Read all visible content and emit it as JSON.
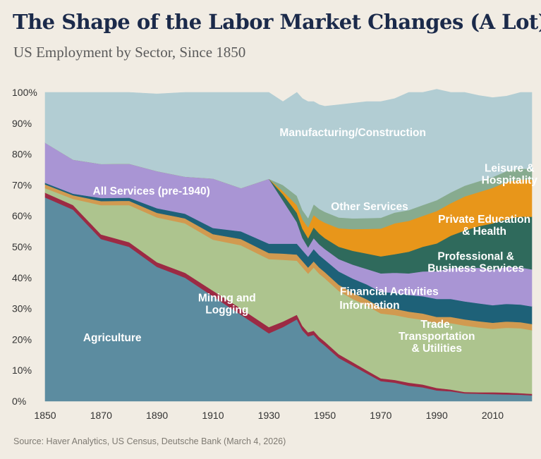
{
  "title": "The Shape of the Labor Market Changes (A Lot)",
  "subtitle": "US Employment by Sector, Since 1850",
  "source": "Source: Haver Analytics, US Census, Deutsche Bank (March 4, 2026)",
  "chart_data": {
    "type": "area",
    "stacked": true,
    "x": [
      1850,
      1860,
      1870,
      1880,
      1890,
      1900,
      1910,
      1920,
      1930,
      1935,
      1940,
      1942,
      1944,
      1946,
      1948,
      1950,
      1955,
      1960,
      1965,
      1970,
      1975,
      1980,
      1985,
      1990,
      1995,
      2000,
      2005,
      2010,
      2015,
      2020,
      2024
    ],
    "xticks": [
      1850,
      1870,
      1890,
      1910,
      1930,
      1950,
      1970,
      1990,
      2010
    ],
    "yticks": [
      0,
      10,
      20,
      30,
      40,
      50,
      60,
      70,
      80,
      90,
      100
    ],
    "ytick_format": "{v}%",
    "xlim": [
      1850,
      2024
    ],
    "ylim": [
      0,
      100
    ],
    "series": [
      {
        "name": "Agriculture",
        "color": "#5c8ca0",
        "values": [
          66,
          62,
          52.5,
          50,
          43.5,
          40,
          34,
          28,
          22,
          24,
          26.5,
          23,
          21,
          21.5,
          19.5,
          18,
          14,
          11.5,
          9,
          6.5,
          6,
          5,
          4.5,
          3.5,
          3.2,
          2.5,
          2.4,
          2.3,
          2.2,
          2.1,
          1.9
        ]
      },
      {
        "name": "Mining and Logging",
        "color": "#9c2a44",
        "values": [
          1.5,
          1.5,
          1.5,
          1.5,
          1.5,
          1.6,
          1.8,
          2,
          2,
          1.8,
          1.5,
          1.4,
          1.3,
          1.3,
          1.3,
          1.3,
          1.2,
          1.1,
          1,
          0.9,
          0.9,
          1,
          0.9,
          0.8,
          0.6,
          0.5,
          0.5,
          0.6,
          0.6,
          0.5,
          0.5
        ]
      },
      {
        "name": "Trade, Transportation & Utilities",
        "color": "#adc48e",
        "values": [
          1.5,
          2,
          9.5,
          12,
          14.5,
          16,
          16.5,
          20.5,
          22,
          20,
          17.5,
          19,
          19,
          20.5,
          20.5,
          20.5,
          20.5,
          20.5,
          21,
          21,
          21,
          21,
          21,
          21,
          21.5,
          21.5,
          21,
          20.5,
          21,
          21,
          20.6
        ]
      },
      {
        "name": "Information",
        "color": "#d19a50",
        "values": [
          1.2,
          1.2,
          1.3,
          1.4,
          1.5,
          1.6,
          1.8,
          2,
          2,
          2,
          2,
          2,
          2,
          2,
          2,
          2,
          2,
          2,
          2,
          2,
          2,
          2,
          2,
          2,
          2,
          2,
          2,
          2,
          2,
          2,
          2
        ]
      },
      {
        "name": "Financial Activities",
        "color": "#1e6178",
        "values": [
          0.5,
          0.5,
          1,
          1,
          1.5,
          1.5,
          2,
          2.5,
          3,
          3.2,
          3.5,
          3.5,
          3.5,
          4,
          4,
          4,
          4.3,
          4.6,
          4.8,
          5,
          5.2,
          5.4,
          5.6,
          5.8,
          5.8,
          5.8,
          5.8,
          5.7,
          5.7,
          5.7,
          5.7
        ]
      },
      {
        "name": "All Services (pre-1940)",
        "color": "#a995d4",
        "values": [
          13,
          11,
          11,
          11,
          12,
          12,
          16,
          14,
          21,
          14,
          7,
          4,
          3,
          3.5,
          3.5,
          3.5,
          4,
          4.5,
          5,
          6,
          6.5,
          7,
          8,
          9,
          10,
          11,
          11.5,
          11.5,
          12,
          12,
          12
        ]
      },
      {
        "name": "Private Education & Health",
        "color": "#2f6a5c",
        "values": [
          0,
          0,
          0,
          0,
          0,
          0,
          0,
          0,
          0,
          2,
          3,
          3,
          3,
          3.5,
          3.5,
          3.5,
          4,
          4.5,
          5,
          5.5,
          6,
          7,
          8,
          9,
          10.5,
          12,
          13.5,
          15,
          15.5,
          16.5,
          17
        ]
      },
      {
        "name": "Other Services",
        "color": "#e8961a",
        "values": [
          0,
          0,
          0,
          0,
          0,
          0,
          0,
          0,
          0,
          1,
          2.5,
          3,
          3.5,
          4,
          4.5,
          5,
          6,
          7,
          8,
          9,
          10,
          10,
          10,
          10.5,
          10.5,
          11,
          11,
          11.5,
          12,
          12,
          12
        ]
      },
      {
        "name": "Leisure & Hospitality",
        "color": "#87ab8f",
        "values": [
          0,
          0,
          0,
          0,
          0,
          0,
          0,
          0,
          0,
          2,
          3,
          3,
          3,
          3.5,
          3.5,
          3.5,
          3.5,
          3.5,
          3.5,
          3.5,
          3.5,
          3.5,
          3.5,
          3.5,
          3.5,
          3.5,
          3.5,
          3.5,
          3.5,
          3.5,
          3.5
        ]
      },
      {
        "name": "Manufacturing/Construction",
        "color": "#b2cdd3",
        "values": [
          16.3,
          21.8,
          23.2,
          23.1,
          25,
          27.3,
          27.9,
          31,
          28,
          27,
          33.5,
          36.1,
          37.7,
          33.2,
          33.7,
          34.2,
          36.5,
          37.3,
          37.7,
          37.6,
          36.9,
          38.1,
          36.5,
          35.9,
          32.4,
          30.2,
          27.8,
          25.7,
          24.3,
          24.7,
          24.8
        ]
      }
    ],
    "annotations": [
      {
        "name": "Agriculture",
        "lines": [
          "Agriculture"
        ],
        "x": 1874,
        "y": 20.5,
        "dark": false
      },
      {
        "name": "Mining and Logging",
        "lines": [
          "Mining and",
          "Logging"
        ],
        "x": 1915,
        "y": 31.5,
        "dark": false
      },
      {
        "name": "All Services (pre-1940)",
        "lines": [
          "All Services (pre-1940)"
        ],
        "x": 1888,
        "y": 68,
        "dark": false
      },
      {
        "name": "Manufacturing/Construction",
        "lines": [
          "Manufacturing/Construction"
        ],
        "x": 1960,
        "y": 87,
        "dark": false
      },
      {
        "name": "Other Services",
        "lines": [
          "Other Services"
        ],
        "x": 1966,
        "y": 63,
        "dark": false
      },
      {
        "name": "Leisure & Hospitality",
        "lines": [
          "Leisure &",
          "Hospitality"
        ],
        "x": 2016,
        "y": 73.5,
        "dark": false
      },
      {
        "name": "Private Education & Health",
        "lines": [
          "Private Education",
          "& Health"
        ],
        "x": 2007,
        "y": 57,
        "dark": false
      },
      {
        "name": "Professional & Business Services",
        "lines": [
          "Professional &",
          "Business Services"
        ],
        "x": 2004,
        "y": 45,
        "dark": false
      },
      {
        "name": "Financial Activities",
        "lines": [
          "Financial Activities"
        ],
        "x": 1973,
        "y": 35.5,
        "dark": false
      },
      {
        "name": "Information",
        "lines": [
          "Information"
        ],
        "x": 1966,
        "y": 31,
        "dark": false
      },
      {
        "name": "Trade, Transportation & Utilities",
        "lines": [
          "Trade,",
          "Transportation",
          "& Utilities"
        ],
        "x": 1990,
        "y": 21,
        "dark": false
      }
    ]
  }
}
